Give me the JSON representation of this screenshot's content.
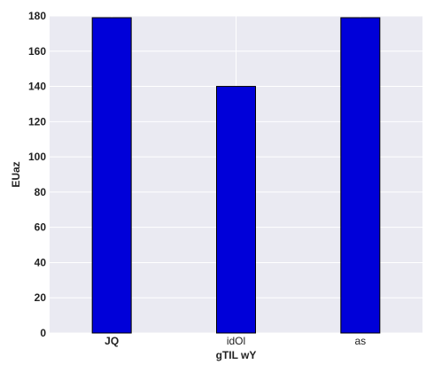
{
  "chart_data": {
    "type": "bar",
    "categories": [
      "JQ",
      "idOl",
      "as"
    ],
    "category_label_weights": [
      "bold",
      "normal",
      "normal"
    ],
    "values": [
      179,
      140,
      179
    ],
    "xlabel": "gTIL wY",
    "ylabel": "EUaz",
    "ylim": [
      0,
      180
    ],
    "yticks": [
      0,
      20,
      40,
      60,
      80,
      100,
      120,
      140,
      160,
      180
    ],
    "grid": true,
    "bar_color": "#0000d9",
    "background_color": "#eaeaf2",
    "grid_color": "#ffffff"
  }
}
